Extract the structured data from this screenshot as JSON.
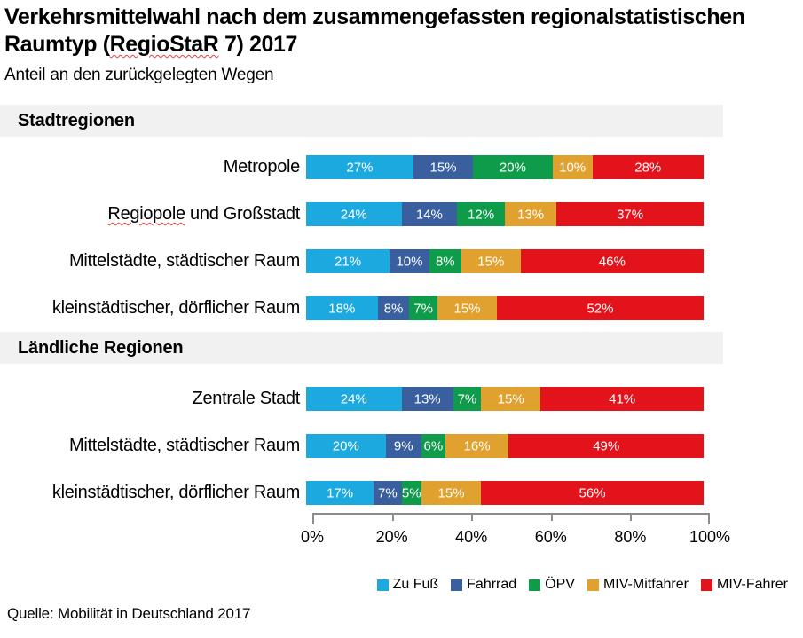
{
  "header": {
    "title_full": "Verkehrsmittelwahl nach dem zusammengefassten regionalstatistischen Raumtyp (RegioStaR 7) 2017",
    "title_line1": "Verkehrsmittelwahl nach dem zusammengefassten regionalstatistischen",
    "title_line2": {
      "pre": "Raumtyp (",
      "flagged": "RegioStaR",
      "post": " 7) 2017"
    },
    "subtitle": "Anteil an den zurückgelegten Wegen"
  },
  "chart_data": {
    "type": "bar",
    "stacked": true,
    "orientation": "horizontal",
    "title": "Verkehrsmittelwahl nach dem zusammengefassten regionalstatistischen Raumtyp (RegioStaR 7) 2017",
    "subtitle": "Anteil an den zurückgelegten Wegen",
    "unit": "%",
    "grid": false,
    "legend_position": "bottom-right",
    "series_names": [
      "Zu Fuß",
      "Fahrrad",
      "ÖPV",
      "MIV-Mitfahrer",
      "MIV-Fahrer"
    ],
    "series_colors": [
      "#1BA9E0",
      "#3A5F9F",
      "#0E9B4A",
      "#E0A12F",
      "#E2131B"
    ],
    "xaxis": {
      "range": [
        0,
        100
      ],
      "tick_labels": [
        "0%",
        "20%",
        "40%",
        "60%",
        "80%",
        "100%"
      ]
    },
    "groups": [
      {
        "label": "Stadtregionen",
        "rows": [
          {
            "label": "Metropole",
            "values": [
              27,
              15,
              20,
              10,
              28
            ],
            "value_labels": [
              "27%",
              "15%",
              "20%",
              "10%",
              "28%"
            ]
          },
          {
            "label": "Regiopole und Großstadt",
            "label_parts": [
              {
                "text": "Regiopole",
                "flagged": true
              },
              {
                "text": " und Großstadt",
                "flagged": false
              }
            ],
            "values": [
              24,
              14,
              12,
              13,
              37
            ],
            "value_labels": [
              "24%",
              "14%",
              "12%",
              "13%",
              "37%"
            ]
          },
          {
            "label": "Mittelstädte, städtischer Raum",
            "values": [
              21,
              10,
              8,
              15,
              46
            ],
            "value_labels": [
              "21%",
              "10%",
              "8%",
              "15%",
              "46%"
            ]
          },
          {
            "label": "kleinstädtischer, dörflicher Raum",
            "values": [
              18,
              8,
              7,
              15,
              52
            ],
            "value_labels": [
              "18%",
              "8%",
              "7%",
              "15%",
              "52%"
            ]
          }
        ]
      },
      {
        "label": "Ländliche Regionen",
        "rows": [
          {
            "label": "Zentrale Stadt",
            "values": [
              24,
              13,
              7,
              15,
              41
            ],
            "value_labels": [
              "24%",
              "13%",
              "7%",
              "15%",
              "41%"
            ]
          },
          {
            "label": "Mittelstädte, städtischer Raum",
            "values": [
              20,
              9,
              6,
              16,
              49
            ],
            "value_labels": [
              "20%",
              "9%",
              "6%",
              "16%",
              "49%"
            ]
          },
          {
            "label": "kleinstädtischer, dörflicher Raum",
            "values": [
              17,
              7,
              5,
              15,
              56
            ],
            "value_labels": [
              "17%",
              "7%",
              "5%",
              "15%",
              "56%"
            ]
          }
        ]
      }
    ],
    "legend": [
      {
        "label": "Zu Fuß",
        "color": "#1BA9E0"
      },
      {
        "label": "Fahrrad",
        "color": "#3A5F9F"
      },
      {
        "label": "ÖPV",
        "color": "#0E9B4A"
      },
      {
        "label": "MIV-Mitfahrer",
        "color": "#E0A12F"
      },
      {
        "label": "MIV-Fahrer",
        "color": "#E2131B"
      }
    ]
  },
  "footer": {
    "source": "Quelle: Mobilität in Deutschland 2017"
  },
  "colors": {
    "section_band": "#F1F1F1",
    "axis": "#8C8C8C",
    "spellcheck_underline": "#EF3E42",
    "bar_label_text": "#FFFFFF",
    "text": "#000000"
  }
}
